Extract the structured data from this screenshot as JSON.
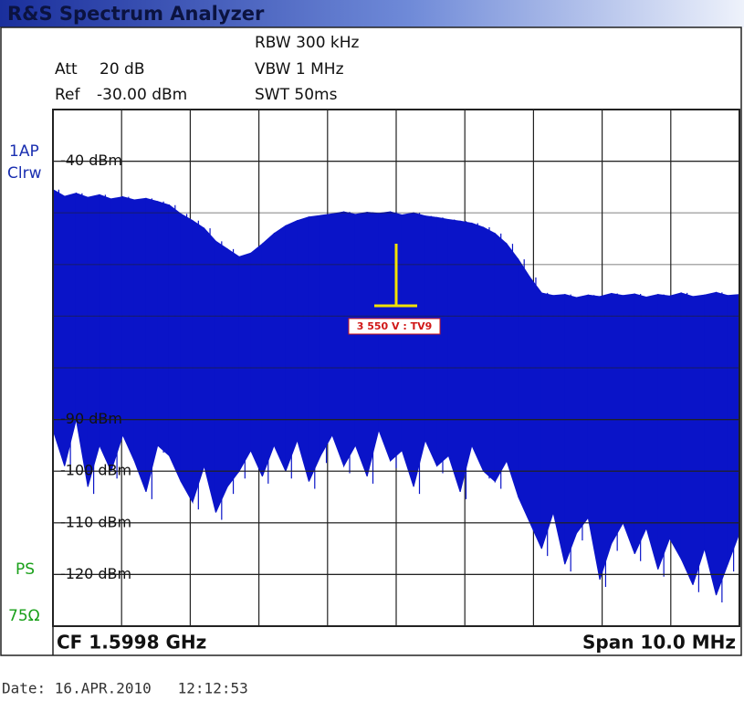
{
  "header": {
    "title": "R&S Spectrum Analyzer"
  },
  "settings": {
    "rbw": "RBW 300 kHz",
    "att_label": "Att",
    "att": "20 dB",
    "vbw": "VBW 1 MHz",
    "ref_label": "Ref",
    "ref": "-30.00 dBm",
    "swt": "SWT 50ms"
  },
  "side": {
    "trace": "1AP",
    "mode": "Clrw",
    "ps": "PS",
    "impedance": "75Ω"
  },
  "chart_data": {
    "type": "band",
    "ylim": [
      -130,
      -30
    ],
    "yticks": [
      {
        "value": -40,
        "label": "-40 dBm"
      },
      {
        "value": -90,
        "label": "-90 dBm"
      },
      {
        "value": -100,
        "label": "-100 dBm"
      },
      {
        "value": -110,
        "label": "-110 dBm"
      },
      {
        "value": -120,
        "label": "-120 dBm"
      }
    ],
    "series": [
      {
        "color": "#0a14c8",
        "values": [
          -45.5,
          -46.8,
          -46.2,
          -47,
          -46.5,
          -47.3,
          -46.9,
          -47.5,
          -47.2,
          -47.8,
          -48.5,
          -50.2,
          -51.5,
          -53,
          -55.5,
          -57,
          -58.5,
          -57.8,
          -56,
          -54,
          -52.5,
          -51.5,
          -50.8,
          -50.5,
          -50.2,
          -49.8,
          -50.3,
          -49.9,
          -50.1,
          -49.8,
          -50.4,
          -50,
          -50.6,
          -50.9,
          -51.3,
          -51.6,
          -52,
          -52.8,
          -54,
          -56,
          -59,
          -62.5,
          -65.5,
          -66,
          -65.8,
          -66.4,
          -65.9,
          -66.2,
          -65.6,
          -66,
          -65.7,
          -66.3,
          -65.8,
          -66.1,
          -65.5,
          -66.2,
          -65.9,
          -65.4,
          -66,
          -65.8
        ]
      },
      {
        "color": "#0a14c8",
        "values": [
          -92,
          -99,
          -90,
          -103,
          -95,
          -100,
          -93,
          -98,
          -104,
          -95,
          -97,
          -102,
          -106,
          -99,
          -108,
          -103,
          -100,
          -96,
          -101,
          -95,
          -100,
          -94,
          -102,
          -97,
          -93,
          -99,
          -95,
          -101,
          -92,
          -98,
          -96,
          -103,
          -94,
          -99,
          -97,
          -104,
          -95,
          -100,
          -102,
          -98,
          -105,
          -110,
          -115,
          -108,
          -118,
          -112,
          -109,
          -121,
          -114,
          -110,
          -116,
          -111,
          -119,
          -113,
          -117,
          -122,
          -115,
          -124,
          -118,
          -112
        ]
      }
    ],
    "annotation": "3 550 V : TV9"
  },
  "footer": {
    "cf": "CF 1.5998 GHz",
    "span": "Span 10.0 MHz",
    "date": "Date: 16.APR.2010   12:12:53"
  }
}
